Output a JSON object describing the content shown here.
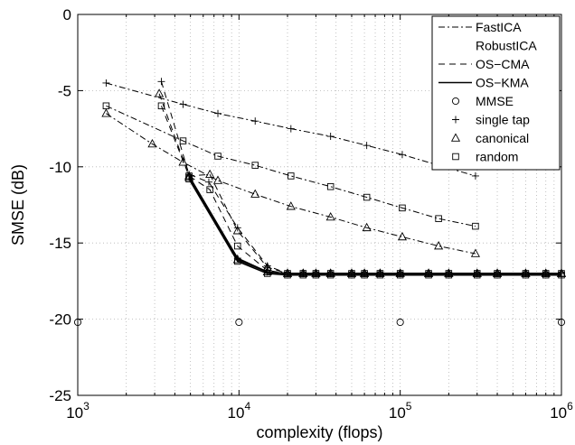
{
  "chart_data": {
    "type": "line",
    "xlabel": "complexity (flops)",
    "ylabel": "SMSE (dB)",
    "xscale": "log",
    "xlim": [
      1000,
      1000000
    ],
    "ylim": [
      -25,
      0
    ],
    "xticks": [
      {
        "value": 1000,
        "base": "10",
        "exp": "3"
      },
      {
        "value": 10000,
        "base": "10",
        "exp": "4"
      },
      {
        "value": 100000,
        "base": "10",
        "exp": "5"
      },
      {
        "value": 1000000,
        "base": "10",
        "exp": "6"
      }
    ],
    "yticks": [
      0,
      -5,
      -10,
      -15,
      -20,
      -25
    ],
    "grid": true,
    "legend_position": "top-right",
    "legend": [
      {
        "label": "FastICA",
        "line": "dashdot",
        "marker": null
      },
      {
        "label": "RobustICA",
        "line": "none",
        "marker": null
      },
      {
        "label": "OS−CMA",
        "line": "dashed",
        "marker": null
      },
      {
        "label": "OS−KMA",
        "line": "solid",
        "marker": null
      },
      {
        "label": "MMSE",
        "line": "none",
        "marker": "circle"
      },
      {
        "label": "single tap",
        "line": "none",
        "marker": "plus"
      },
      {
        "label": "canonical",
        "line": "none",
        "marker": "triangle"
      },
      {
        "label": "random",
        "line": "none",
        "marker": "square"
      }
    ],
    "series": [
      {
        "name": "FastICA",
        "marker": "plus",
        "line": "dashdot",
        "x": [
          1500,
          4500,
          7400,
          12600,
          21000,
          37000,
          62000,
          103000,
          173000,
          293000
        ],
        "y": [
          -4.5,
          -5.9,
          -6.5,
          -7.0,
          -7.5,
          -8.0,
          -8.6,
          -9.2,
          -9.9,
          -10.6
        ]
      },
      {
        "name": "FastICA",
        "marker": "square",
        "line": "dashdot",
        "x": [
          1500,
          4500,
          7400,
          12600,
          21000,
          37000,
          62000,
          103000,
          173000,
          293000
        ],
        "y": [
          -6.0,
          -8.3,
          -9.3,
          -9.9,
          -10.6,
          -11.3,
          -12.0,
          -12.7,
          -13.4,
          -13.9
        ]
      },
      {
        "name": "FastICA",
        "marker": "triangle",
        "line": "dashdot",
        "x": [
          1500,
          2900,
          4500,
          7400,
          12600,
          21000,
          37000,
          62000,
          103000,
          173000,
          293000
        ],
        "y": [
          -6.5,
          -8.5,
          -9.7,
          -10.9,
          -11.8,
          -12.6,
          -13.3,
          -14.0,
          -14.6,
          -15.2,
          -15.7
        ]
      },
      {
        "name": "OS−CMA",
        "marker": "plus",
        "line": "dashed",
        "x": [
          3300,
          4900,
          6500,
          9800,
          15000,
          20000,
          25000,
          30000,
          37000,
          50000,
          60000,
          75000,
          100000,
          150000,
          200000,
          300000,
          400000,
          600000,
          800000,
          1000000
        ],
        "y": [
          -4.4,
          -10.5,
          -11.0,
          -14.0,
          -16.5,
          -17.0,
          -17.0,
          -17.0,
          -17.0,
          -17.0,
          -17.0,
          -17.0,
          -17.0,
          -17.0,
          -17.0,
          -17.0,
          -17.0,
          -17.0,
          -17.0,
          -17.0
        ]
      },
      {
        "name": "OS−CMA",
        "marker": "triangle",
        "line": "dashed",
        "x": [
          3200,
          4900,
          6600,
          9800,
          15000,
          20000,
          25000,
          30000,
          37000,
          50000,
          60000,
          75000,
          100000,
          150000,
          200000,
          300000,
          400000,
          600000,
          800000,
          1000000
        ],
        "y": [
          -5.2,
          -10.6,
          -10.5,
          -14.2,
          -16.6,
          -17.0,
          -17.0,
          -17.0,
          -17.0,
          -17.0,
          -17.0,
          -17.0,
          -17.0,
          -17.0,
          -17.0,
          -17.0,
          -17.0,
          -17.0,
          -17.0,
          -17.0
        ]
      },
      {
        "name": "OS−CMA",
        "marker": "square",
        "line": "dashed",
        "x": [
          3300,
          4900,
          6600,
          9800,
          15000,
          20000,
          25000,
          30000,
          37000,
          50000,
          60000,
          75000,
          100000,
          150000,
          200000,
          300000,
          400000,
          600000,
          800000,
          1000000
        ],
        "y": [
          -6.0,
          -10.6,
          -11.5,
          -15.2,
          -16.8,
          -17.0,
          -17.0,
          -17.0,
          -17.0,
          -17.0,
          -17.0,
          -17.0,
          -17.0,
          -17.0,
          -17.0,
          -17.0,
          -17.0,
          -17.0,
          -17.0,
          -17.0
        ]
      },
      {
        "name": "OS−KMA",
        "marker": "plus",
        "line": "solid",
        "x": [
          4900,
          9800,
          15000,
          20000,
          25000,
          30000,
          37000,
          50000,
          60000,
          75000,
          100000,
          150000,
          200000,
          300000,
          400000,
          600000,
          800000,
          1000000
        ],
        "y": [
          -10.6,
          -16.0,
          -16.9,
          -17.0,
          -17.0,
          -17.0,
          -17.0,
          -17.0,
          -17.0,
          -17.0,
          -17.0,
          -17.0,
          -17.0,
          -17.0,
          -17.0,
          -17.0,
          -17.0,
          -17.0
        ]
      },
      {
        "name": "OS−KMA",
        "marker": "triangle",
        "line": "solid",
        "x": [
          4900,
          9800,
          15000,
          20000,
          25000,
          30000,
          37000,
          50000,
          60000,
          75000,
          100000,
          150000,
          200000,
          300000,
          400000,
          600000,
          800000,
          1000000
        ],
        "y": [
          -10.7,
          -16.1,
          -16.9,
          -17.0,
          -17.0,
          -17.0,
          -17.0,
          -17.0,
          -17.0,
          -17.0,
          -17.0,
          -17.0,
          -17.0,
          -17.0,
          -17.0,
          -17.0,
          -17.0,
          -17.0
        ]
      },
      {
        "name": "OS−KMA",
        "marker": "square",
        "line": "solid",
        "x": [
          4900,
          9800,
          15000,
          20000,
          25000,
          30000,
          37000,
          50000,
          60000,
          75000,
          100000,
          150000,
          200000,
          300000,
          400000,
          600000,
          800000,
          1000000
        ],
        "y": [
          -10.8,
          -16.2,
          -17.0,
          -17.1,
          -17.1,
          -17.1,
          -17.1,
          -17.1,
          -17.1,
          -17.1,
          -17.1,
          -17.1,
          -17.1,
          -17.1,
          -17.1,
          -17.1,
          -17.1,
          -17.1
        ]
      },
      {
        "name": "MMSE",
        "marker": "circle",
        "line": "none",
        "x": [
          1000,
          10000,
          100000,
          1000000
        ],
        "y": [
          -20.2,
          -20.2,
          -20.2,
          -20.2
        ]
      }
    ]
  }
}
